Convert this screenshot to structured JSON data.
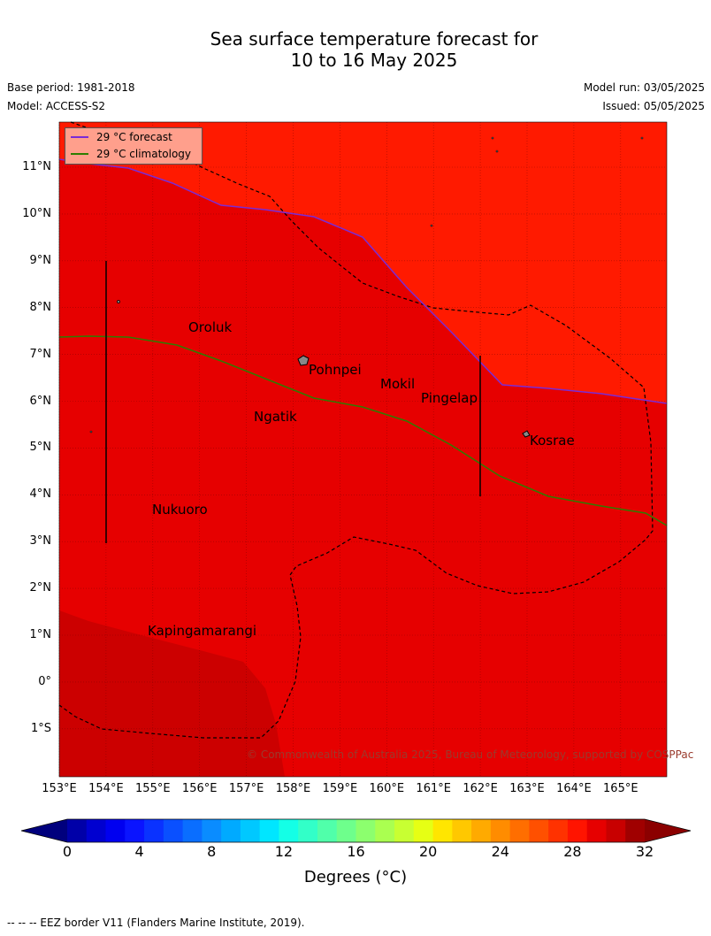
{
  "title": {
    "line1": "Sea surface temperature forecast for",
    "line2": "10 to 16 May 2025"
  },
  "meta": {
    "base_period": "Base period: 1981-2018",
    "model": "Model: ACCESS-S2",
    "model_run": "Model run: 03/05/2025",
    "issued": "Issued: 05/05/2025"
  },
  "map": {
    "lat_labels": [
      "11°N",
      "10°N",
      "9°N",
      "8°N",
      "7°N",
      "6°N",
      "5°N",
      "4°N",
      "3°N",
      "2°N",
      "1°N",
      "0°",
      "1°S"
    ],
    "lon_labels": [
      "153°E",
      "154°E",
      "155°E",
      "156°E",
      "157°E",
      "158°E",
      "159°E",
      "160°E",
      "161°E",
      "162°E",
      "163°E",
      "164°E",
      "165°E"
    ],
    "places": [
      "Oroluk",
      "Pohnpei",
      "Mokil",
      "Pingelap",
      "Ngatik",
      "Kosrae",
      "Nukuoro",
      "Kapingamarangi"
    ],
    "colors": {
      "warm_band": "#ff1a00",
      "main_band": "#e60000",
      "cool_band": "#cc0000",
      "forecast_line": "#7a2bd6",
      "climatology_line": "#2e7d00"
    }
  },
  "legend": {
    "forecast": "29 °C  forecast",
    "climatology": "29 °C  climatology"
  },
  "copyright": "© Commonwealth of Australia 2025, Bureau of Meteorology, supported by COSPPac",
  "colorbar": {
    "labels": [
      "0",
      "4",
      "8",
      "12",
      "16",
      "20",
      "24",
      "28",
      "32"
    ],
    "title": "Degrees (°C)",
    "colors": [
      "#0000a8",
      "#0000d0",
      "#0000f0",
      "#0a14ff",
      "#0a32ff",
      "#0a50ff",
      "#0a6eff",
      "#0a8cff",
      "#00aaff",
      "#00c8ff",
      "#00e6ff",
      "#14ffe6",
      "#32ffc8",
      "#50ffaa",
      "#6eff8c",
      "#8cff6e",
      "#aaff50",
      "#c8ff32",
      "#e6ff14",
      "#ffe600",
      "#ffc800",
      "#ffaa00",
      "#ff8c00",
      "#ff6e00",
      "#ff5000",
      "#ff3200",
      "#ff1400",
      "#e60000",
      "#c80000",
      "#a00000"
    ],
    "under_color": "#00007d",
    "over_color": "#8b0000"
  },
  "footnote": "--  --  -- EEZ border V11 (Flanders Marine Institute, 2019)."
}
